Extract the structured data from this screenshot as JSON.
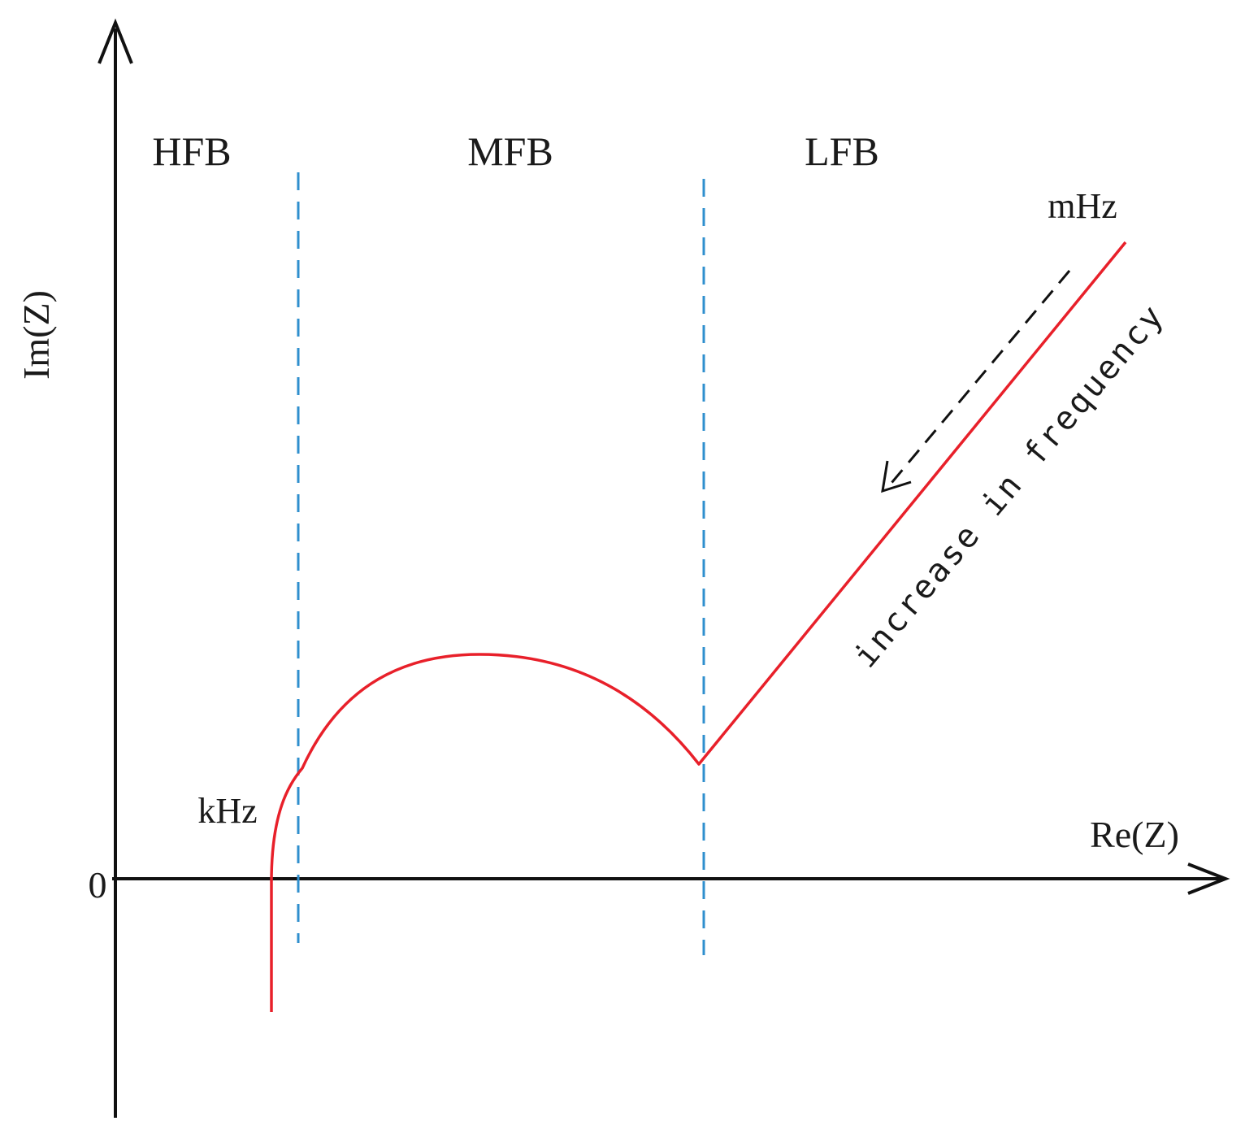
{
  "axes": {
    "x_label": "Re(Z)",
    "y_label": "Im(Z)",
    "origin_label": "0"
  },
  "bands": {
    "high": "HFB",
    "mid": "MFB",
    "low": "LFB"
  },
  "frequency_labels": {
    "start": "kHz",
    "end": "mHz"
  },
  "annotation": {
    "text": "increase in frequency"
  },
  "colors": {
    "curve": "#e8202a",
    "divider": "#2f8fce",
    "axis": "#111111"
  }
}
